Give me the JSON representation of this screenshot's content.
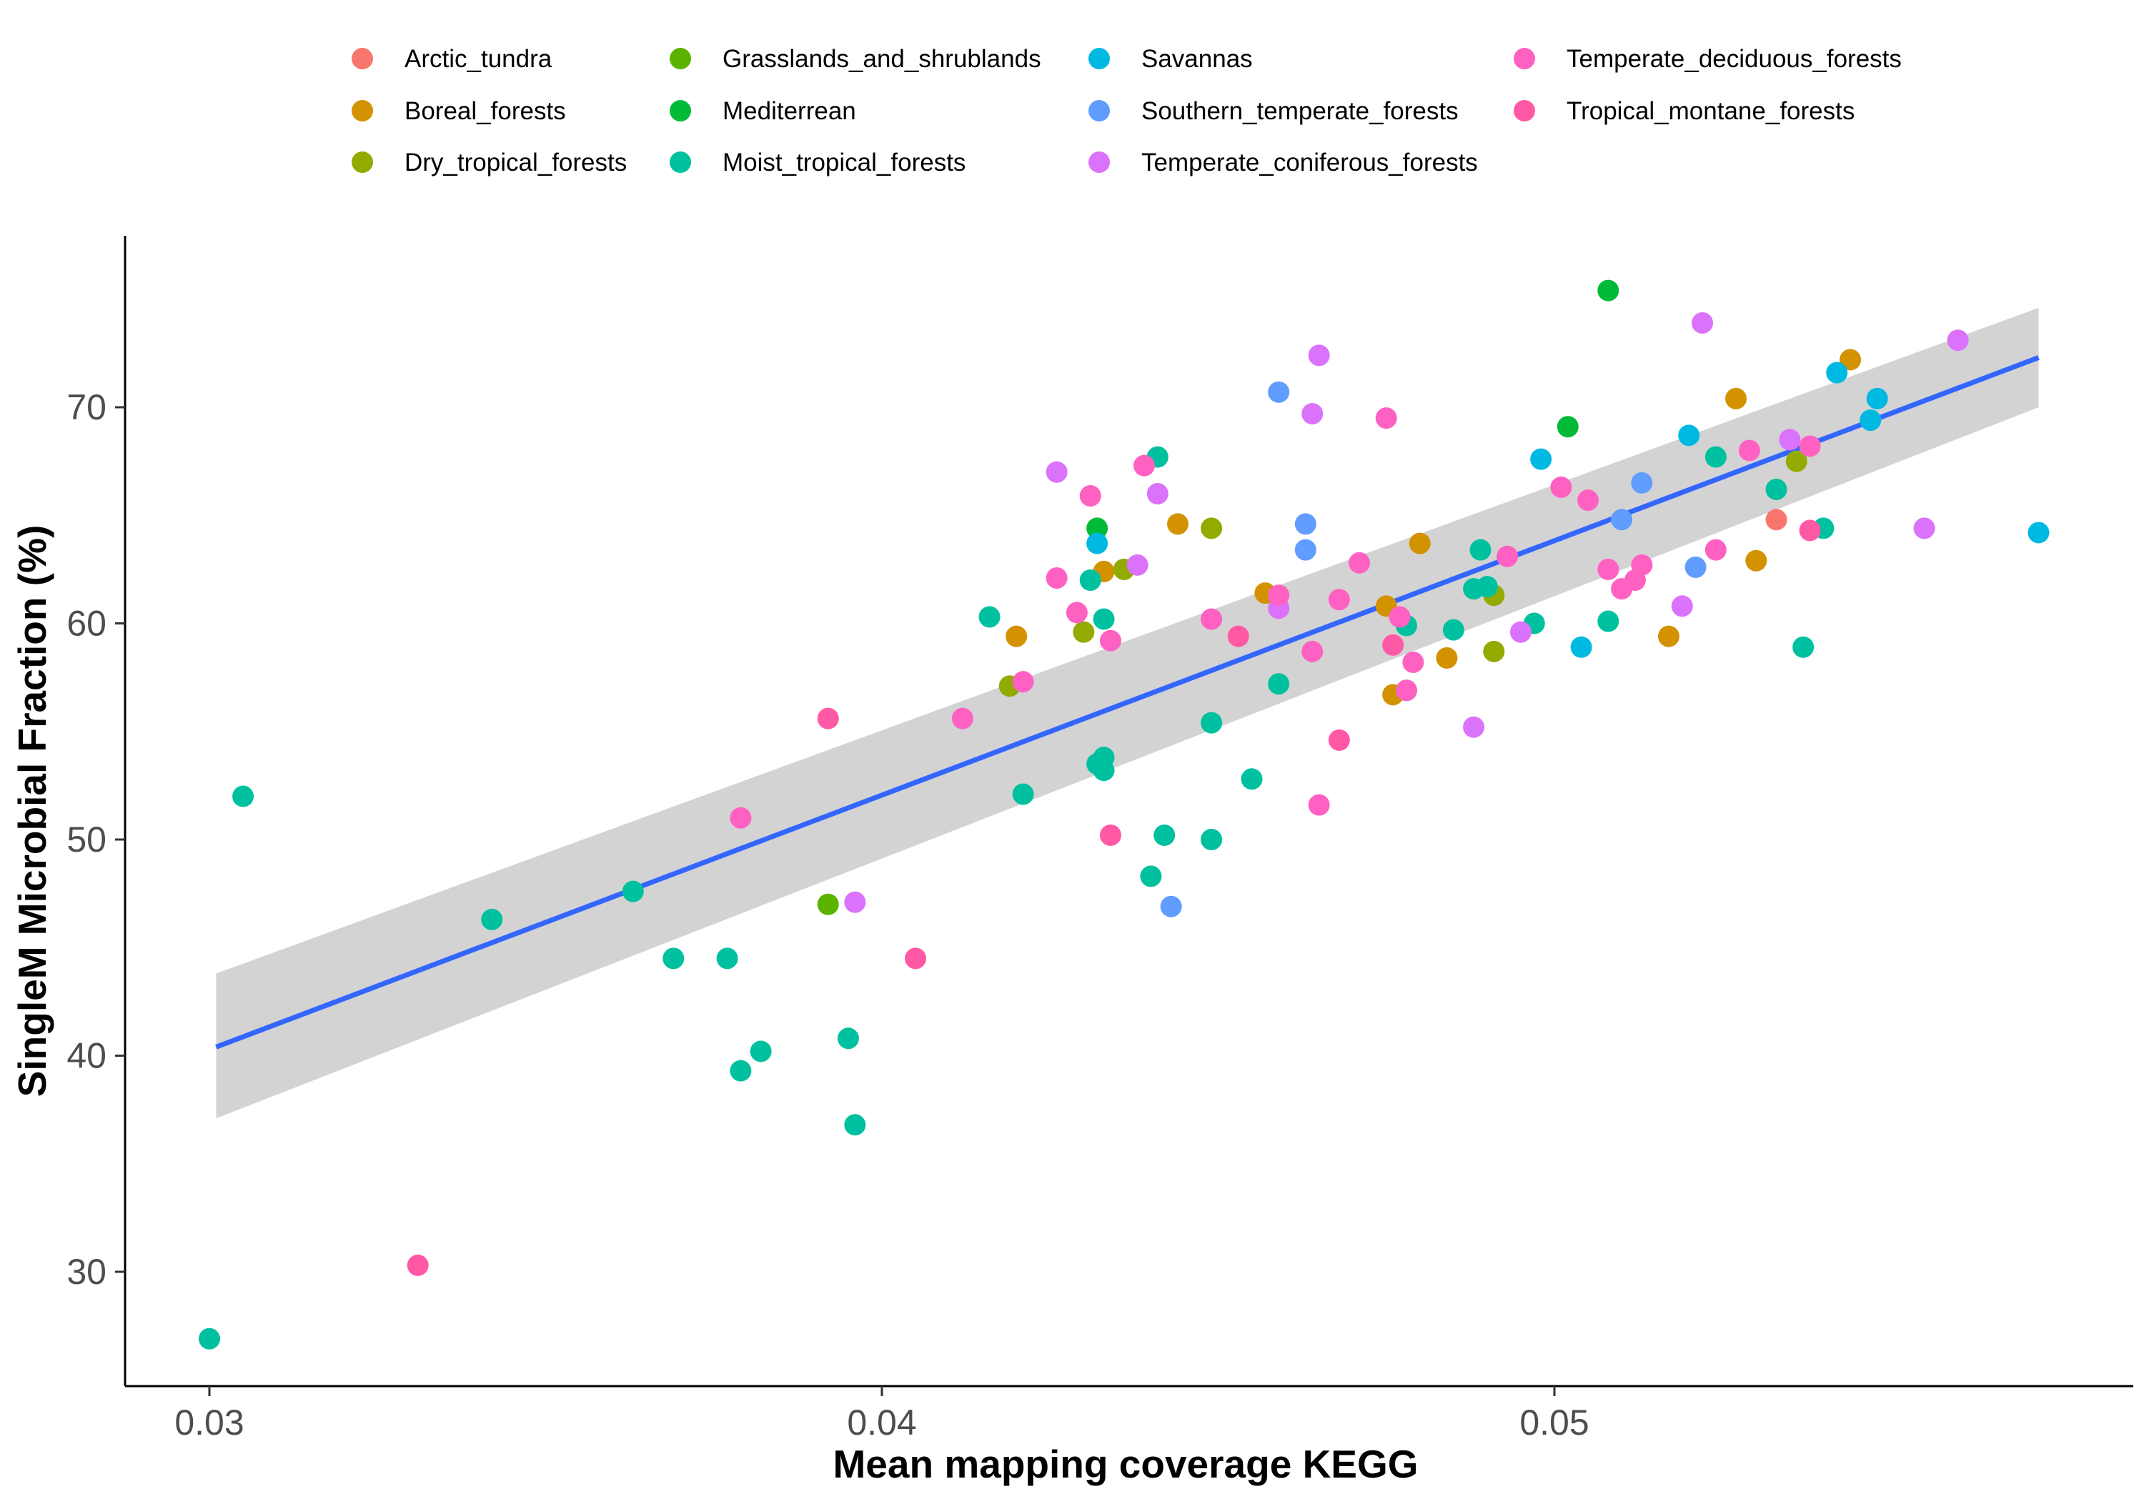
{
  "chart_data": {
    "type": "scatter",
    "xlabel": "Mean mapping coverage KEGG",
    "ylabel": "SingleM Microbial Fraction (%)",
    "xlim": [
      0.0288,
      0.0572
    ],
    "ylim": [
      24.5,
      77.8
    ],
    "x_ticks": [
      0.03,
      0.04,
      0.05
    ],
    "x_tick_labels": [
      "0.03",
      "0.04",
      "0.05"
    ],
    "y_ticks": [
      30,
      40,
      50,
      60,
      70
    ],
    "y_tick_labels": [
      "30",
      "40",
      "50",
      "60",
      "70"
    ],
    "grid": false,
    "legend_position": "top",
    "fit_line": {
      "x": [
        0.0301,
        0.0572
      ],
      "y": [
        40.4,
        72.3
      ],
      "ci_upper": [
        43.8,
        74.6
      ],
      "ci_lower": [
        37.1,
        70.0
      ],
      "color": "#3366FF",
      "band_color": "#d3d3d3"
    },
    "series": [
      {
        "name": "Arctic_tundra",
        "color": "#F8766D",
        "x": [
          0.0533
        ],
        "y": [
          64.8
        ]
      },
      {
        "name": "Boreal_forests",
        "color": "#D39200",
        "x": [
          0.042,
          0.0433,
          0.0444,
          0.0457,
          0.0475,
          0.0476,
          0.048,
          0.0484,
          0.0517,
          0.0527,
          0.053,
          0.0544
        ],
        "y": [
          59.4,
          62.4,
          64.6,
          61.4,
          60.8,
          56.7,
          63.7,
          58.4,
          59.4,
          70.4,
          62.9,
          72.2
        ]
      },
      {
        "name": "Dry_tropical_forests",
        "color": "#93AA00",
        "x": [
          0.0419,
          0.043,
          0.0436,
          0.0449,
          0.0491,
          0.0491,
          0.0536
        ],
        "y": [
          57.1,
          59.6,
          62.5,
          64.4,
          61.3,
          58.7,
          67.5
        ]
      },
      {
        "name": "Grasslands_and_shrublands",
        "color": "#5BB300",
        "x": [
          0.0392
        ],
        "y": [
          47.0
        ]
      },
      {
        "name": "Mediterrean",
        "color": "#00BA38",
        "x": [
          0.0432,
          0.0478,
          0.0502,
          0.0508
        ],
        "y": [
          64.4,
          56.9,
          69.1,
          75.4
        ]
      },
      {
        "name": "Moist_tropical_forests",
        "color": "#00C19F",
        "x": [
          0.03,
          0.0305,
          0.0342,
          0.0363,
          0.0369,
          0.0377,
          0.0379,
          0.0382,
          0.0395,
          0.0396,
          0.0416,
          0.0421,
          0.0431,
          0.0432,
          0.0433,
          0.0433,
          0.0433,
          0.044,
          0.0441,
          0.0442,
          0.0449,
          0.0449,
          0.0455,
          0.0459,
          0.0478,
          0.0485,
          0.0488,
          0.0489,
          0.049,
          0.0497,
          0.0508,
          0.0524,
          0.0533,
          0.0537,
          0.054
        ],
        "y": [
          26.9,
          52.0,
          46.3,
          47.6,
          44.5,
          44.5,
          39.3,
          40.2,
          40.8,
          36.8,
          60.3,
          52.1,
          62.0,
          53.5,
          53.8,
          53.2,
          60.2,
          48.3,
          67.7,
          50.2,
          50.0,
          55.4,
          52.8,
          57.2,
          59.9,
          59.7,
          61.6,
          63.4,
          61.7,
          60.0,
          60.1,
          67.7,
          66.2,
          58.9,
          64.4
        ]
      },
      {
        "name": "Savannas",
        "color": "#00B9E3",
        "x": [
          0.0432,
          0.0498,
          0.0504,
          0.052,
          0.0542,
          0.0547,
          0.0548,
          0.0572
        ],
        "y": [
          63.7,
          67.6,
          58.9,
          68.7,
          71.6,
          69.4,
          70.4,
          64.2
        ]
      },
      {
        "name": "Southern_temperate_forests",
        "color": "#619CFF",
        "x": [
          0.0443,
          0.0459,
          0.0463,
          0.0463,
          0.051,
          0.0513,
          0.0521
        ],
        "y": [
          46.9,
          70.7,
          64.6,
          63.4,
          64.8,
          66.5,
          62.6
        ]
      },
      {
        "name": "Temperate_coniferous_forests",
        "color": "#DB72FB",
        "x": [
          0.0396,
          0.0426,
          0.0438,
          0.0441,
          0.0459,
          0.0464,
          0.0465,
          0.0488,
          0.0495,
          0.0519,
          0.0522,
          0.0535,
          0.0555,
          0.056
        ],
        "y": [
          47.1,
          67.0,
          62.7,
          66.0,
          60.7,
          69.7,
          72.4,
          55.2,
          59.6,
          60.8,
          73.9,
          68.5,
          64.4,
          73.1
        ]
      },
      {
        "name": "Temperate_deciduous_forests",
        "color": "#FF61C3",
        "x": [
          0.0379,
          0.0412,
          0.0421,
          0.0426,
          0.0429,
          0.0431,
          0.0434,
          0.0439,
          0.0449,
          0.0459,
          0.0464,
          0.0465,
          0.0468,
          0.0471,
          0.0475,
          0.0477,
          0.0478,
          0.0479,
          0.0493,
          0.0501,
          0.0505,
          0.0508,
          0.051,
          0.0512,
          0.0513,
          0.0524,
          0.0529,
          0.0538
        ],
        "y": [
          51.0,
          55.6,
          57.3,
          62.1,
          60.5,
          65.9,
          59.2,
          67.3,
          60.2,
          61.3,
          58.7,
          51.6,
          61.1,
          62.8,
          69.5,
          60.3,
          56.9,
          58.2,
          63.1,
          66.3,
          65.7,
          62.5,
          61.6,
          62.0,
          62.7,
          63.4,
          68.0,
          68.2
        ]
      },
      {
        "name": "Tropical_montane_forests",
        "color": "#FF59A6",
        "x": [
          0.0331,
          0.0392,
          0.0405,
          0.0434,
          0.0453,
          0.0468,
          0.0476,
          0.0538
        ],
        "y": [
          30.3,
          55.6,
          44.5,
          50.2,
          59.4,
          54.6,
          59.0,
          64.3
        ]
      }
    ]
  }
}
